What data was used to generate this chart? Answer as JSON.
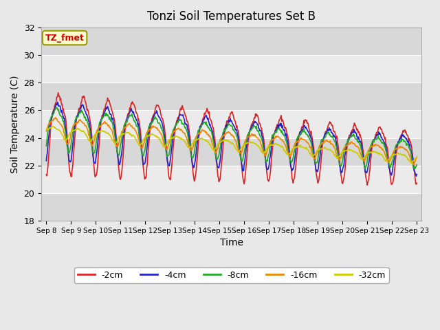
{
  "title": "Tonzi Soil Temperatures Set B",
  "xlabel": "Time",
  "ylabel": "Soil Temperature (C)",
  "ylim": [
    18,
    32
  ],
  "annotation_text": "TZ_fmet",
  "annotation_bbox": {
    "boxstyle": "round,pad=0.3",
    "facecolor": "#ffffcc",
    "edgecolor": "#999900",
    "linewidth": 1.5
  },
  "annotation_color": "#cc0000",
  "background_color": "#e8e8e8",
  "axes_bg_color": "#e8e8e8",
  "grid_color": "white",
  "series": [
    {
      "label": "-2cm",
      "color": "#dd2222",
      "lw": 1.2
    },
    {
      "label": "-4cm",
      "color": "#2222cc",
      "lw": 1.2
    },
    {
      "label": "-8cm",
      "color": "#22aa22",
      "lw": 1.2
    },
    {
      "label": "-16cm",
      "color": "#ee8800",
      "lw": 1.2
    },
    {
      "label": "-32cm",
      "color": "#cccc00",
      "lw": 1.2
    }
  ],
  "xtick_labels": [
    "Sep 8",
    "Sep 9",
    "Sep 10",
    "Sep 11",
    "Sep 12",
    "Sep 13",
    "Sep 14",
    "Sep 15",
    "Sep 16",
    "Sep 17",
    "Sep 18",
    "Sep 19",
    "Sep 20",
    "Sep 21",
    "Sep 22",
    "Sep 23"
  ],
  "ytick_labels": [
    18,
    20,
    22,
    24,
    26,
    28,
    30,
    32
  ]
}
